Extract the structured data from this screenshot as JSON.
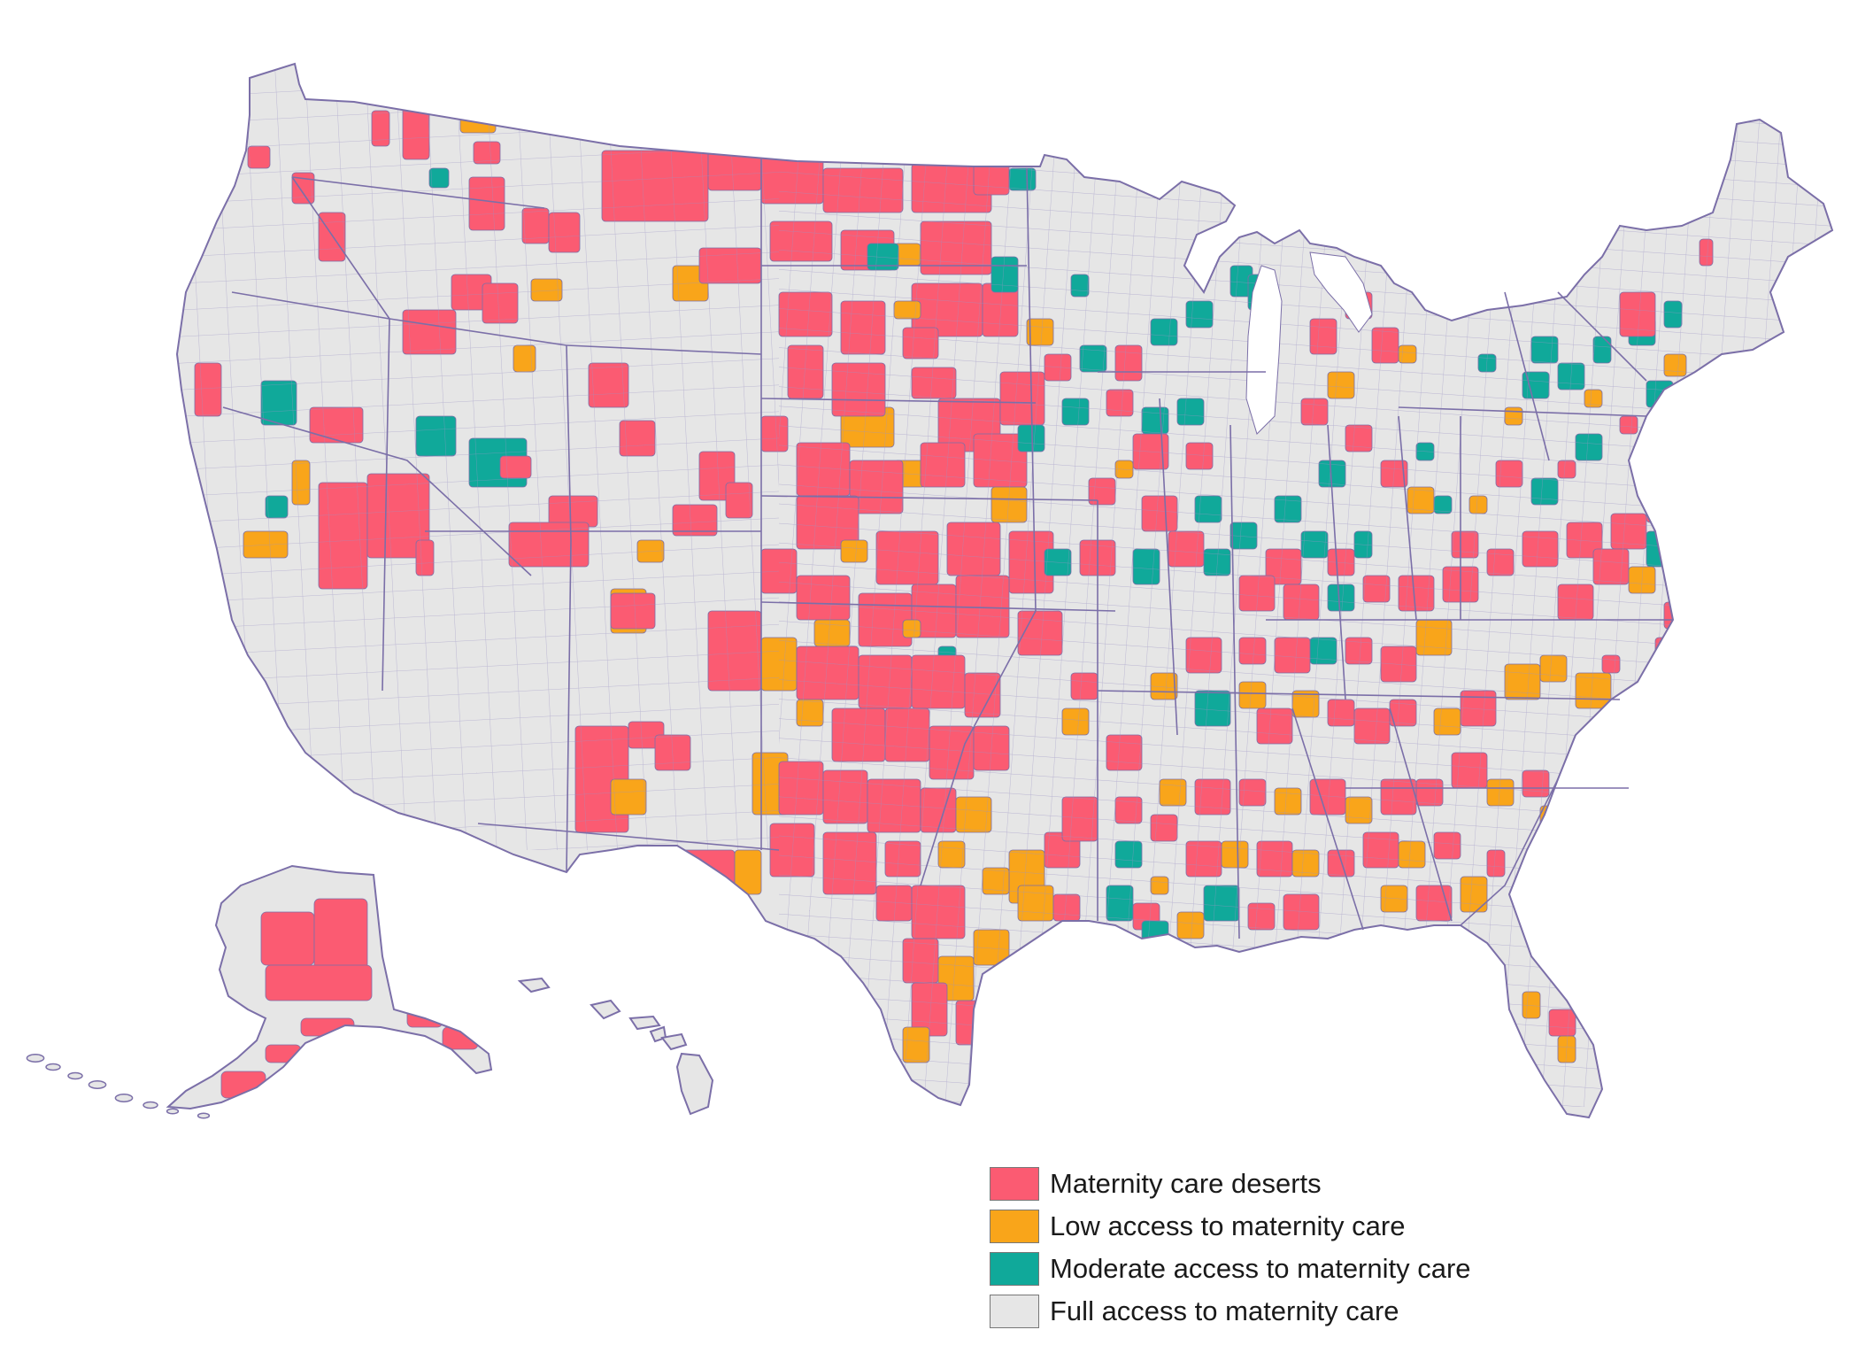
{
  "legend": {
    "items": [
      {
        "key": "desert",
        "label": "Maternity care deserts",
        "color": "#FB5B72"
      },
      {
        "key": "low",
        "label": "Low access to maternity care",
        "color": "#F9A51A"
      },
      {
        "key": "moderate",
        "label": "Moderate access to maternity care",
        "color": "#10A99A"
      },
      {
        "key": "full",
        "label": "Full access to maternity care",
        "color": "#E6E6E6"
      }
    ]
  },
  "map": {
    "border_color": "#7B6FA8",
    "base_color": "#E6E6E6"
  }
}
